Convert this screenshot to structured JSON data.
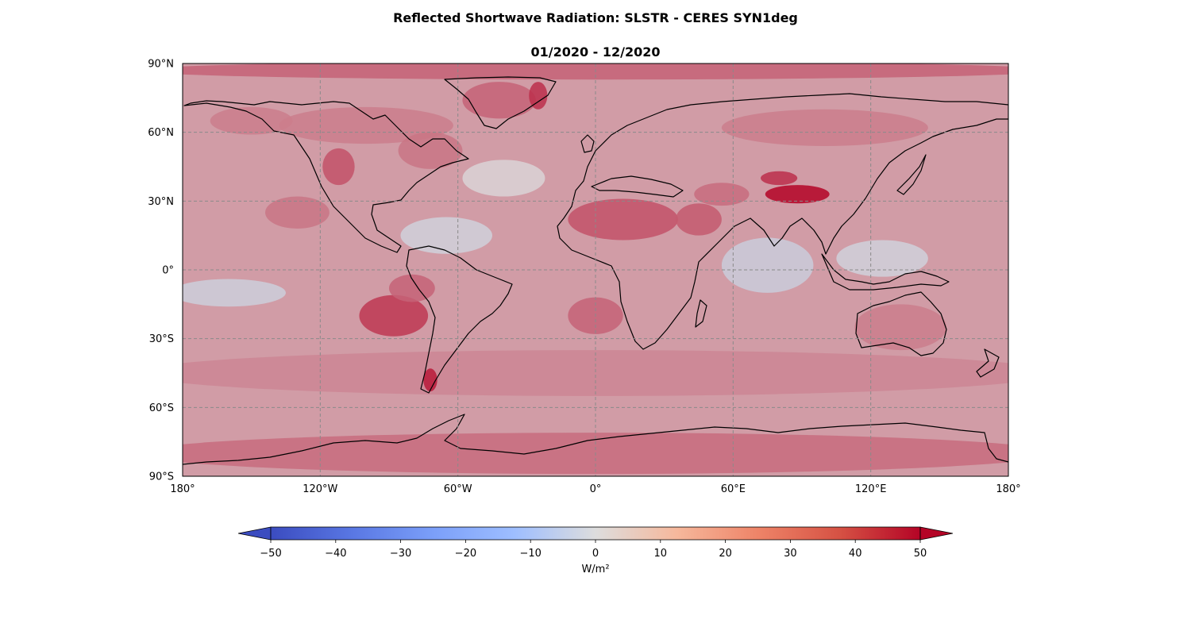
{
  "figure": {
    "title": "Reflected Shortwave Radiation: SLSTR - CERES SYN1deg",
    "subtitle": "01/2020 - 12/2020"
  },
  "map": {
    "projection": "equirectangular",
    "extent": {
      "lon": [
        -180,
        180
      ],
      "lat": [
        -90,
        90
      ]
    },
    "gridlines": true,
    "lat_ticks": [
      {
        "value": 90,
        "label": "90°N"
      },
      {
        "value": 60,
        "label": "60°N"
      },
      {
        "value": 30,
        "label": "30°N"
      },
      {
        "value": 0,
        "label": "0°"
      },
      {
        "value": -30,
        "label": "30°S"
      },
      {
        "value": -60,
        "label": "60°S"
      },
      {
        "value": -90,
        "label": "90°S"
      }
    ],
    "lon_ticks": [
      {
        "value": -180,
        "label": "180°"
      },
      {
        "value": -120,
        "label": "120°W"
      },
      {
        "value": -60,
        "label": "60°W"
      },
      {
        "value": 0,
        "label": "0°"
      },
      {
        "value": 60,
        "label": "60°E"
      },
      {
        "value": 120,
        "label": "120°E"
      },
      {
        "value": 180,
        "label": "180°"
      }
    ],
    "background_value": 15,
    "anomaly_regions": [
      {
        "name": "polar-north",
        "lon": 0,
        "lat": 87,
        "rlon": 200,
        "rlat": 4,
        "value": 28
      },
      {
        "name": "antarctica",
        "lon": 0,
        "lat": -80,
        "rlon": 200,
        "rlat": 9,
        "value": 26
      },
      {
        "name": "southern-ocean",
        "lon": 0,
        "lat": -45,
        "rlon": 200,
        "rlat": 10,
        "value": 20
      },
      {
        "name": "northern-canada",
        "lon": -100,
        "lat": 63,
        "rlon": 38,
        "rlat": 8,
        "value": 22
      },
      {
        "name": "alaska",
        "lon": -150,
        "lat": 65,
        "rlon": 18,
        "rlat": 6,
        "value": 22
      },
      {
        "name": "rockies",
        "lon": -112,
        "lat": 45,
        "rlon": 7,
        "rlat": 8,
        "value": 32
      },
      {
        "name": "eastern-canada",
        "lon": -72,
        "lat": 52,
        "rlon": 14,
        "rlat": 8,
        "value": 24
      },
      {
        "name": "greenland",
        "lon": -42,
        "lat": 74,
        "rlon": 16,
        "rlat": 8,
        "value": 28
      },
      {
        "name": "east-greenland",
        "lon": -25,
        "lat": 76,
        "rlon": 4,
        "rlat": 6,
        "value": 40
      },
      {
        "name": "sahara",
        "lon": 12,
        "lat": 22,
        "rlon": 24,
        "rlat": 9,
        "value": 32
      },
      {
        "name": "arabia",
        "lon": 45,
        "lat": 22,
        "rlon": 10,
        "rlat": 7,
        "value": 30
      },
      {
        "name": "middle-east",
        "lon": 55,
        "lat": 33,
        "rlon": 12,
        "rlat": 5,
        "value": 26
      },
      {
        "name": "siberia",
        "lon": 100,
        "lat": 62,
        "rlon": 45,
        "rlat": 8,
        "value": 22
      },
      {
        "name": "tibet",
        "lon": 88,
        "lat": 33,
        "rlon": 14,
        "rlat": 4,
        "value": 50
      },
      {
        "name": "tarim",
        "lon": 80,
        "lat": 40,
        "rlon": 8,
        "rlat": 3,
        "value": 40
      },
      {
        "name": "peru-stratocumulus",
        "lon": -88,
        "lat": -20,
        "rlon": 15,
        "rlat": 9,
        "value": 38
      },
      {
        "name": "chile-stratocumulus",
        "lon": -80,
        "lat": -8,
        "rlon": 10,
        "rlat": 6,
        "value": 28
      },
      {
        "name": "namibia-stratocumulus",
        "lon": 0,
        "lat": -20,
        "rlon": 12,
        "rlat": 8,
        "value": 28
      },
      {
        "name": "california-stratocumulus",
        "lon": -130,
        "lat": 25,
        "rlon": 14,
        "rlat": 7,
        "value": 24
      },
      {
        "name": "australia",
        "lon": 133,
        "lat": -25,
        "rlon": 20,
        "rlat": 10,
        "value": 22
      },
      {
        "name": "patagonia",
        "lon": -72,
        "lat": -48,
        "rlon": 3,
        "rlat": 5,
        "value": 45
      },
      {
        "name": "indian-ocean-low",
        "lon": 75,
        "lat": 2,
        "rlon": 20,
        "rlat": 12,
        "value": -6
      },
      {
        "name": "caribbean-low",
        "lon": -65,
        "lat": 15,
        "rlon": 20,
        "rlat": 8,
        "value": -4
      },
      {
        "name": "tropical-pacific-low",
        "lon": -160,
        "lat": -10,
        "rlon": 25,
        "rlat": 6,
        "value": -5
      },
      {
        "name": "maritime-continent-low",
        "lon": 125,
        "lat": 5,
        "rlon": 20,
        "rlat": 8,
        "value": -4
      },
      {
        "name": "north-atlantic-low",
        "lon": -40,
        "lat": 40,
        "rlon": 18,
        "rlat": 8,
        "value": 2
      }
    ]
  },
  "colorbar": {
    "colormap": "coolwarm",
    "min": -50,
    "max": 50,
    "extend": "both",
    "ticks": [
      -50,
      -40,
      -30,
      -20,
      -10,
      0,
      10,
      20,
      30,
      40,
      50
    ],
    "tick_labels": [
      "−50",
      "−40",
      "−30",
      "−20",
      "−10",
      "0",
      "10",
      "20",
      "30",
      "40",
      "50"
    ],
    "label": "W/m²",
    "colors": {
      "low": "#3b4cc0",
      "mid": "#dddddd",
      "high": "#b40426"
    }
  }
}
